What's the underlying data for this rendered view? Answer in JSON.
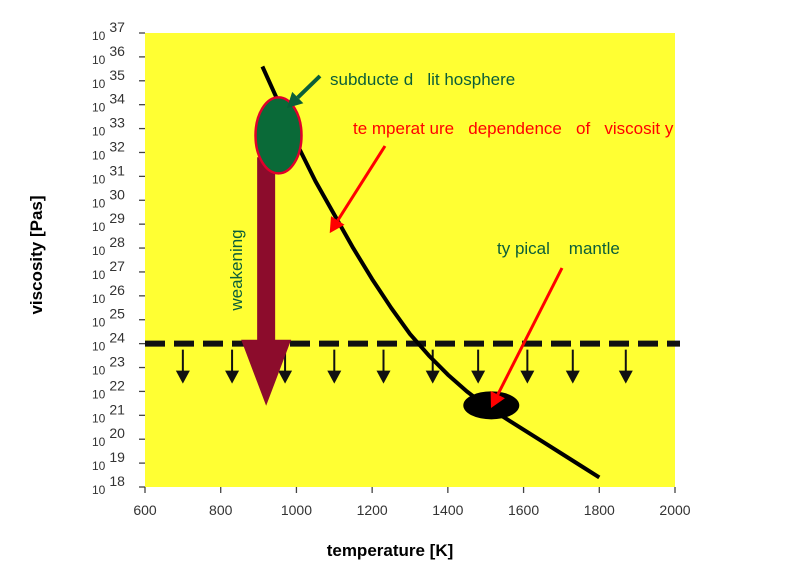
{
  "chart_data": {
    "type": "line",
    "xlabel": "temperature [K]",
    "ylabel": "viscosity [Pas]",
    "x_ticks": [
      600,
      800,
      1000,
      1200,
      1400,
      1600,
      1800,
      2000
    ],
    "y_ticks": [
      18,
      19,
      20,
      21,
      22,
      23,
      24,
      25,
      26,
      27,
      28,
      29,
      30,
      31,
      32,
      33,
      34,
      35,
      36,
      37
    ],
    "y_tick_base": "10",
    "xlim": [
      600,
      2000
    ],
    "ylim": [
      18,
      37
    ],
    "y_scale": "log10",
    "grid": false,
    "background_color": "#ffff33",
    "series": [
      {
        "x": [
          910,
          950,
          1000,
          1050,
          1100,
          1150,
          1200,
          1250,
          1300,
          1350,
          1400,
          1450,
          1500,
          1550,
          1600,
          1650,
          1700,
          1750,
          1800
        ],
        "y": [
          35.6,
          34.2,
          32.4,
          30.8,
          29.4,
          28.0,
          26.7,
          25.5,
          24.4,
          23.5,
          22.7,
          22.0,
          21.4,
          20.9,
          20.4,
          19.9,
          19.4,
          18.9,
          18.4
        ],
        "color": "#000000"
      }
    ],
    "threshold_line": {
      "y": 24,
      "style": "dashed",
      "color": "#111111"
    },
    "down_arrows_x": [
      700,
      830,
      970,
      1100,
      1230,
      1360,
      1480,
      1610,
      1730,
      1870
    ],
    "annotations": {
      "subducted_lithosphere": {
        "text": "subducte d   lit hosphere",
        "color": "#0b5e39",
        "blob_x": 950,
        "blob_y": 32.8,
        "blob_fill": "#0a6a38"
      },
      "temperature_dependence": {
        "text": "te mperat ure   dependence   of   viscosit y",
        "color": "#ff0000",
        "points_to_x": 1080,
        "points_to_y": 28.5
      },
      "typical_mantle": {
        "text": "ty pical    mantle",
        "color": "#0b5e39",
        "blob_x": 1520,
        "blob_y": 21.5,
        "blob_fill": "#000000"
      },
      "weakening": {
        "text": "weakening",
        "arrow_color": "#8c0c2c",
        "label_color": "#0b5e39",
        "x": 920,
        "from_y": 31.8,
        "to_y": 21.4
      }
    }
  }
}
